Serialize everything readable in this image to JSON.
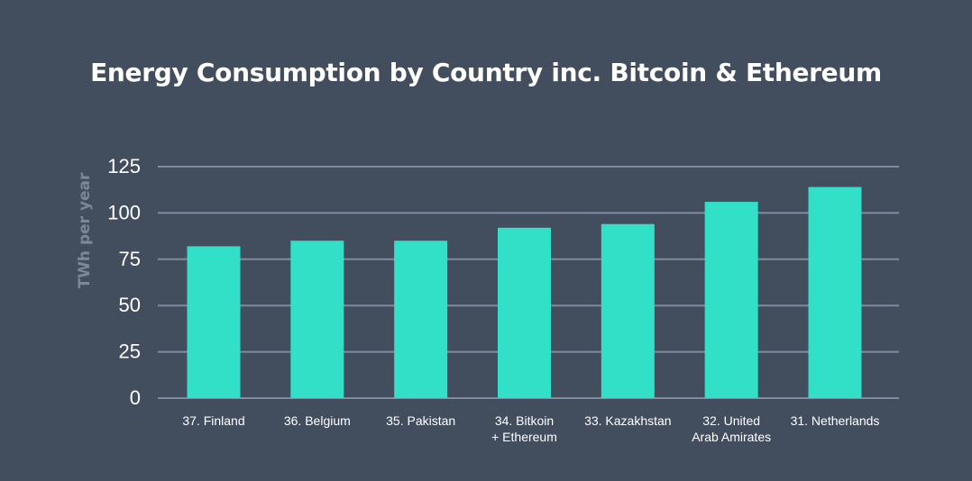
{
  "chart_data": {
    "type": "bar",
    "title": "Energy Consumption by Country inc. Bitcoin & Ethereum",
    "ylabel": "TWh per year",
    "xlabel": "",
    "categories": [
      "37. Finland",
      "36. Belgium",
      "35. Pakistan",
      "34. Bitkoin\n+ Ethereum",
      "33. Kazakhstan",
      "32. United\nArab Amirates",
      "31. Netherlands"
    ],
    "values": [
      82,
      85,
      85,
      92,
      94,
      106,
      114
    ],
    "ylim": [
      0,
      125
    ],
    "yticks": [
      0,
      25,
      50,
      75,
      100,
      125
    ],
    "grid": true,
    "colors": {
      "bar": "#31e0c6",
      "grid": "#7f8ba0",
      "background": "#424d5e",
      "tick_text": "#ffffff",
      "ylabel_text": "#7c8799"
    }
  }
}
